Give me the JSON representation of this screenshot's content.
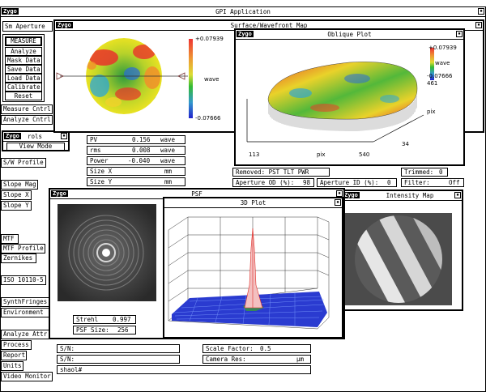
{
  "app": {
    "logo": "Zygo",
    "title": "GPI Application"
  },
  "left_panel": {
    "aperture": "Sm Aperture",
    "buttons": [
      "MEASURE",
      "Analyze",
      "Mask Data",
      "Save Data",
      "Load Data",
      "Calibrate",
      "Reset"
    ],
    "measure_cntrl": "Measure Cntrl",
    "analyze_cntrl": "Analyze Cntrl",
    "controls_title": "rols",
    "view_mode": "View Mode",
    "sw_profile": "S/W Profile",
    "slope_mag": "Slope Mag",
    "slope_x": "Slope X",
    "slope_y": "Slope Y",
    "mtf": "MTF",
    "mtf_profile": "MTF Profile",
    "zernikes": "Zernikes",
    "iso": "ISO 10110-5",
    "synth": "SynthFringes",
    "environment": "Environment",
    "analyze_attr": "Analyze Attr",
    "process": "Process",
    "report": "Report",
    "units": "Units",
    "video_monitor": "Video Monitor"
  },
  "surface_map": {
    "title": "Surface/Wavefront Map",
    "scale_max": "+0.07939",
    "scale_min": "-0.07666",
    "unit": "wave"
  },
  "oblique_plot": {
    "title": "Oblique Plot",
    "scale_max": "+0.07939",
    "unit": "wave",
    "scale_min": "-0.07666",
    "y_max": "461",
    "x_axis_label": "pix",
    "x_min": "113",
    "x_max": "540",
    "y_axis_label": "pix",
    "y_min": "34"
  },
  "results": {
    "pv": {
      "label": "PV",
      "value": "0.156",
      "unit": "wave"
    },
    "rms": {
      "label": "rms",
      "value": "0.008",
      "unit": "wave"
    },
    "power": {
      "label": "Power",
      "value": "-0.040",
      "unit": "wave"
    },
    "size_x": {
      "label": "Size X",
      "value": "",
      "unit": "mm"
    },
    "size_y": {
      "label": "Size Y",
      "value": "",
      "unit": "mm"
    }
  },
  "status": {
    "removed": "Removed: PST TLT PWR",
    "trimmed_label": "Trimmed:",
    "trimmed_value": "0",
    "aperture_od_label": "Aperture OD (%):",
    "aperture_od_value": "98",
    "aperture_id_label": "Aperture ID (%):",
    "aperture_id_value": "0",
    "filter_label": "Filter:",
    "filter_value": "Off"
  },
  "psf": {
    "title": "PSF",
    "strehl_label": "Strehl",
    "strehl_value": "0.997",
    "psf_size_label": "PSF Size:",
    "psf_size_value": "256"
  },
  "plot3d": {
    "title": "3D Plot"
  },
  "intensity": {
    "title": "Intensity Map"
  },
  "bottom": {
    "sn1": "S/N:",
    "sn2": "S/N:",
    "scale_factor_label": "Scale Factor:",
    "scale_factor_value": "0.5",
    "camera_res_label": "Camera Res:",
    "camera_res_unit": "µm",
    "command": "shaol#"
  }
}
